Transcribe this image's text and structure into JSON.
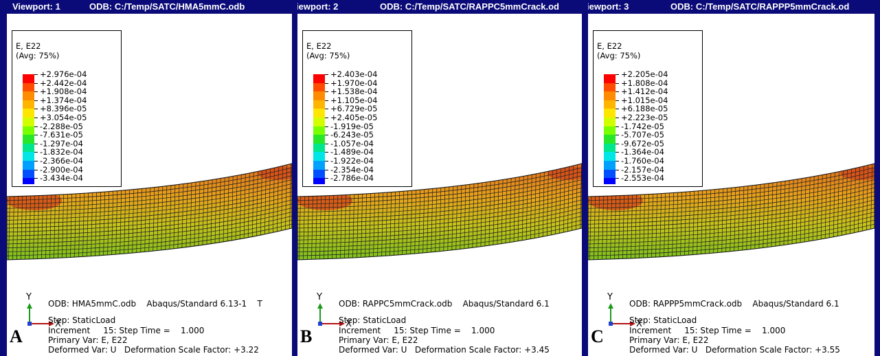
{
  "viewports": [
    {
      "title": {
        "viewport": "Viewport: 1",
        "odb": "ODB: C:/Temp/SATC/HMA5mmC.odb"
      },
      "legend": {
        "variable": "E, E22",
        "averaging": "(Avg: 75%)",
        "values": [
          "+2.976e-04",
          "+2.442e-04",
          "+1.908e-04",
          "+1.374e-04",
          "+8.396e-05",
          "+3.054e-05",
          "-2.288e-05",
          "-7.631e-05",
          "-1.297e-04",
          "-1.832e-04",
          "-2.366e-04",
          "-2.900e-04",
          "-3.434e-04"
        ]
      },
      "triad": {
        "y": "Y",
        "x": "X"
      },
      "info": [
        "ODB: HMA5mmC.odb    Abaqus/Standard 6.13-1    T",
        "Step: StaticLoad",
        "Increment     15: Step Time =    1.000",
        "Primary Var: E, E22",
        "Deformed Var: U   Deformation Scale Factor: +3.22"
      ],
      "label": "A"
    },
    {
      "title": {
        "viewport": "iewport: 2",
        "odb": "ODB: C:/Temp/SATC/RAPPC5mmCrack.od"
      },
      "legend": {
        "variable": "E, E22",
        "averaging": "(Avg: 75%)",
        "values": [
          "+2.403e-04",
          "+1.970e-04",
          "+1.538e-04",
          "+1.105e-04",
          "+6.729e-05",
          "+2.405e-05",
          "-1.919e-05",
          "-6.243e-05",
          "-1.057e-04",
          "-1.489e-04",
          "-1.922e-04",
          "-2.354e-04",
          "-2.786e-04"
        ]
      },
      "triad": {
        "y": "Y",
        "x": "X"
      },
      "info": [
        "ODB: RAPPC5mmCrack.odb    Abaqus/Standard 6.1",
        "Step: StaticLoad",
        "Increment     15: Step Time =    1.000",
        "Primary Var: E, E22",
        "Deformed Var: U   Deformation Scale Factor: +3.45"
      ],
      "label": "B"
    },
    {
      "title": {
        "viewport": "iewport: 3",
        "odb": "ODB: C:/Temp/SATC/RAPPP5mmCrack.od"
      },
      "legend": {
        "variable": "E, E22",
        "averaging": "(Avg: 75%)",
        "values": [
          "+2.205e-04",
          "+1.808e-04",
          "+1.412e-04",
          "+1.015e-04",
          "+6.188e-05",
          "+2.223e-05",
          "-1.742e-05",
          "-5.707e-05",
          "-9.672e-05",
          "-1.364e-04",
          "-1.760e-04",
          "-2.157e-04",
          "-2.553e-04"
        ]
      },
      "triad": {
        "y": "Y",
        "x": "X"
      },
      "info": [
        "ODB: RAPPP5mmCrack.odb    Abaqus/Standard 6.1",
        "Step: StaticLoad",
        "Increment     15: Step Time =    1.000",
        "Primary Var: E, E22",
        "Deformed Var: U   Deformation Scale Factor: +3.55"
      ],
      "label": "C"
    }
  ]
}
